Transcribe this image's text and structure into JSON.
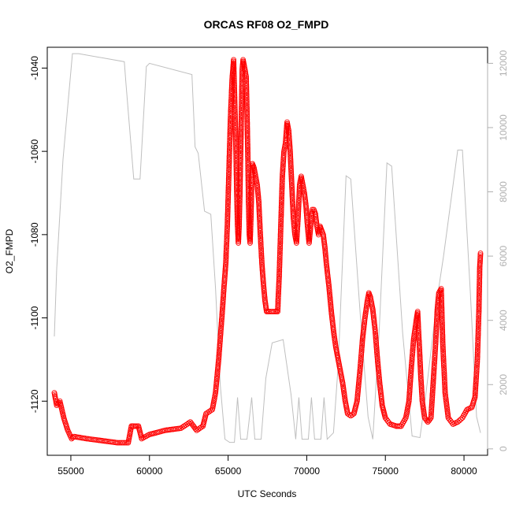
{
  "chart_data": {
    "type": "scatter",
    "title": "ORCAS RF08 O2_FMPD",
    "xlabel": "UTC Seconds",
    "ylabel": "O2_FMPD",
    "xlim": [
      53500,
      81500
    ],
    "ylim": [
      -1133,
      -1035
    ],
    "y2lim": [
      -200,
      12500
    ],
    "x_ticks": [
      55000,
      60000,
      65000,
      70000,
      75000,
      80000
    ],
    "y_ticks": [
      -1040,
      -1060,
      -1080,
      -1100,
      -1120
    ],
    "y2_ticks": [
      0,
      2000,
      4000,
      6000,
      8000,
      10000,
      12000
    ],
    "grid": false,
    "series": [
      {
        "color": "#ff0000",
        "marker": "open-circle",
        "line": "dashed-connected",
        "axis": "left",
        "points": [
          [
            53950,
            -1118
          ],
          [
            54100,
            -1121
          ],
          [
            54300,
            -1120
          ],
          [
            54550,
            -1124
          ],
          [
            54800,
            -1127
          ],
          [
            55050,
            -1129
          ],
          [
            55200,
            -1128.5
          ],
          [
            56000,
            -1129
          ],
          [
            57000,
            -1129.5
          ],
          [
            58000,
            -1130
          ],
          [
            58650,
            -1130
          ],
          [
            58850,
            -1126
          ],
          [
            59000,
            -1126
          ],
          [
            59300,
            -1126
          ],
          [
            59500,
            -1129
          ],
          [
            60000,
            -1128
          ],
          [
            61000,
            -1127
          ],
          [
            62000,
            -1126.5
          ],
          [
            62600,
            -1125
          ],
          [
            62800,
            -1126
          ],
          [
            63000,
            -1127
          ],
          [
            63400,
            -1126
          ],
          [
            63600,
            -1123
          ],
          [
            64000,
            -1122
          ],
          [
            64200,
            -1118
          ],
          [
            64400,
            -1110
          ],
          [
            64600,
            -1100
          ],
          [
            64750,
            -1092
          ],
          [
            64850,
            -1087
          ],
          [
            64950,
            -1078
          ],
          [
            65050,
            -1065
          ],
          [
            65150,
            -1052
          ],
          [
            65250,
            -1043
          ],
          [
            65350,
            -1038
          ],
          [
            65400,
            -1045
          ],
          [
            65450,
            -1052
          ],
          [
            65500,
            -1060
          ],
          [
            65550,
            -1070
          ],
          [
            65600,
            -1078
          ],
          [
            65650,
            -1082
          ],
          [
            65700,
            -1078
          ],
          [
            65750,
            -1070
          ],
          [
            65800,
            -1060
          ],
          [
            65850,
            -1050
          ],
          [
            65900,
            -1040
          ],
          [
            65950,
            -1038
          ],
          [
            66050,
            -1040
          ],
          [
            66150,
            -1042
          ],
          [
            66200,
            -1050
          ],
          [
            66250,
            -1060
          ],
          [
            66300,
            -1072
          ],
          [
            66350,
            -1080
          ],
          [
            66400,
            -1082
          ],
          [
            66450,
            -1076
          ],
          [
            66500,
            -1068
          ],
          [
            66550,
            -1063
          ],
          [
            66650,
            -1064
          ],
          [
            66750,
            -1066
          ],
          [
            66850,
            -1068
          ],
          [
            66950,
            -1072
          ],
          [
            67050,
            -1080
          ],
          [
            67150,
            -1087
          ],
          [
            67250,
            -1092
          ],
          [
            67350,
            -1096
          ],
          [
            67450,
            -1098.5
          ],
          [
            67600,
            -1098.5
          ],
          [
            68000,
            -1098.5
          ],
          [
            68150,
            -1098.5
          ],
          [
            68250,
            -1090
          ],
          [
            68350,
            -1078
          ],
          [
            68450,
            -1066
          ],
          [
            68550,
            -1060
          ],
          [
            68650,
            -1058
          ],
          [
            68750,
            -1053
          ],
          [
            68850,
            -1055
          ],
          [
            68950,
            -1060
          ],
          [
            69050,
            -1068
          ],
          [
            69150,
            -1076
          ],
          [
            69250,
            -1080
          ],
          [
            69350,
            -1082
          ],
          [
            69450,
            -1076
          ],
          [
            69550,
            -1068
          ],
          [
            69650,
            -1066
          ],
          [
            69750,
            -1068
          ],
          [
            69850,
            -1070
          ],
          [
            69950,
            -1073
          ],
          [
            70050,
            -1078
          ],
          [
            70150,
            -1082
          ],
          [
            70250,
            -1078
          ],
          [
            70350,
            -1074
          ],
          [
            70450,
            -1074
          ],
          [
            70550,
            -1075
          ],
          [
            70650,
            -1078
          ],
          [
            70750,
            -1080
          ],
          [
            70850,
            -1078
          ],
          [
            70950,
            -1079
          ],
          [
            71050,
            -1080
          ],
          [
            71150,
            -1083
          ],
          [
            71250,
            -1087
          ],
          [
            71400,
            -1092
          ],
          [
            71550,
            -1098
          ],
          [
            71700,
            -1103
          ],
          [
            71850,
            -1107
          ],
          [
            72000,
            -1110
          ],
          [
            72150,
            -1113
          ],
          [
            72300,
            -1116
          ],
          [
            72450,
            -1120
          ],
          [
            72600,
            -1123
          ],
          [
            72800,
            -1123.5
          ],
          [
            73000,
            -1123
          ],
          [
            73200,
            -1120
          ],
          [
            73400,
            -1112
          ],
          [
            73550,
            -1105
          ],
          [
            73700,
            -1100
          ],
          [
            73850,
            -1096
          ],
          [
            73950,
            -1094
          ],
          [
            74050,
            -1095
          ],
          [
            74200,
            -1098
          ],
          [
            74350,
            -1103
          ],
          [
            74500,
            -1110
          ],
          [
            74650,
            -1116
          ],
          [
            74800,
            -1121
          ],
          [
            75000,
            -1124
          ],
          [
            75300,
            -1125.5
          ],
          [
            75700,
            -1126
          ],
          [
            76000,
            -1126
          ],
          [
            76300,
            -1124
          ],
          [
            76500,
            -1120
          ],
          [
            76650,
            -1112
          ],
          [
            76800,
            -1105
          ],
          [
            76950,
            -1101
          ],
          [
            77050,
            -1098.5
          ],
          [
            77150,
            -1106
          ],
          [
            77250,
            -1114
          ],
          [
            77350,
            -1120
          ],
          [
            77500,
            -1124
          ],
          [
            77700,
            -1125
          ],
          [
            77900,
            -1124
          ],
          [
            78050,
            -1115
          ],
          [
            78200,
            -1106
          ],
          [
            78300,
            -1098
          ],
          [
            78400,
            -1094
          ],
          [
            78550,
            -1093
          ],
          [
            78650,
            -1106
          ],
          [
            78800,
            -1118
          ],
          [
            79000,
            -1124
          ],
          [
            79300,
            -1125.5
          ],
          [
            79600,
            -1125
          ],
          [
            79900,
            -1124
          ],
          [
            80200,
            -1122
          ],
          [
            80500,
            -1121.5
          ],
          [
            80700,
            -1119
          ],
          [
            80850,
            -1110
          ],
          [
            80950,
            -1098
          ],
          [
            81000,
            -1088
          ],
          [
            81050,
            -1084.5
          ]
        ]
      },
      {
        "color": "#bfbfbf",
        "marker": "none",
        "line": "solid",
        "axis": "right",
        "points": [
          [
            53950,
            3500
          ],
          [
            54100,
            5600
          ],
          [
            54500,
            9000
          ],
          [
            55100,
            12300
          ],
          [
            55500,
            12300
          ],
          [
            58400,
            12050
          ],
          [
            58500,
            11400
          ],
          [
            59000,
            8400
          ],
          [
            59400,
            8400
          ],
          [
            59800,
            11900
          ],
          [
            60000,
            12000
          ],
          [
            62700,
            11650
          ],
          [
            62900,
            9400
          ],
          [
            63100,
            9200
          ],
          [
            63500,
            7400
          ],
          [
            63900,
            7300
          ],
          [
            64200,
            5000
          ],
          [
            64500,
            2000
          ],
          [
            64800,
            300
          ],
          [
            65100,
            200
          ],
          [
            65400,
            200
          ],
          [
            65600,
            1600
          ],
          [
            65800,
            300
          ],
          [
            66200,
            300
          ],
          [
            66500,
            1600
          ],
          [
            66700,
            300
          ],
          [
            67100,
            300
          ],
          [
            67400,
            2200
          ],
          [
            67800,
            3300
          ],
          [
            68500,
            3400
          ],
          [
            69000,
            1700
          ],
          [
            69300,
            300
          ],
          [
            69500,
            1600
          ],
          [
            69700,
            300
          ],
          [
            70100,
            300
          ],
          [
            70300,
            1600
          ],
          [
            70500,
            300
          ],
          [
            70900,
            300
          ],
          [
            71100,
            1600
          ],
          [
            71300,
            300
          ],
          [
            71700,
            500
          ],
          [
            72000,
            2600
          ],
          [
            72500,
            8500
          ],
          [
            72800,
            8400
          ],
          [
            73400,
            4200
          ],
          [
            73900,
            1000
          ],
          [
            74200,
            300
          ],
          [
            74600,
            3600
          ],
          [
            75100,
            8900
          ],
          [
            75400,
            8800
          ],
          [
            76100,
            3600
          ],
          [
            76700,
            400
          ],
          [
            77200,
            350
          ],
          [
            77600,
            1800
          ],
          [
            78300,
            4700
          ],
          [
            78700,
            6000
          ],
          [
            79600,
            9300
          ],
          [
            79900,
            9300
          ],
          [
            80400,
            4900
          ],
          [
            80800,
            1000
          ],
          [
            81050,
            500
          ]
        ]
      }
    ]
  }
}
